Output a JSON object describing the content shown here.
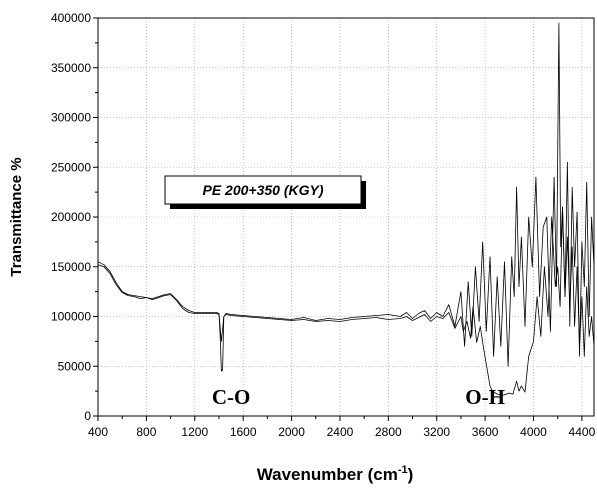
{
  "chart_data": {
    "type": "line",
    "xlabel": "Wavenumber (cm",
    "xlabel_sup": "-1",
    "xlabel_close": ")",
    "ylabel": "Transmittance %",
    "xlim": [
      400,
      4500
    ],
    "ylim": [
      0,
      400000
    ],
    "x_ticks": [
      400,
      800,
      1200,
      1600,
      2000,
      2400,
      2800,
      3200,
      3600,
      4000,
      4400
    ],
    "y_ticks": [
      0,
      50000,
      100000,
      150000,
      200000,
      250000,
      300000,
      350000,
      400000
    ],
    "x_tick_labels": [
      "400",
      "800",
      "1200",
      "1600",
      "2000",
      "2400",
      "2800",
      "3200",
      "3600",
      "4000",
      "4400"
    ],
    "y_tick_labels": [
      "0",
      "50000",
      "100000",
      "150000",
      "200000",
      "250000",
      "300000",
      "350000",
      "400000"
    ],
    "grid": true,
    "legend_label": "PE 200+350 (KGY)",
    "annotations": [
      {
        "text": "C-O",
        "x": 1500,
        "y": 12000
      },
      {
        "text": "O-H",
        "x": 3600,
        "y": 12000
      }
    ],
    "series": [
      {
        "x": [
          400,
          450,
          500,
          550,
          600,
          650,
          700,
          750,
          800,
          850,
          900,
          950,
          1000,
          1050,
          1100,
          1150,
          1200,
          1300,
          1380,
          1400,
          1420,
          1440,
          1460,
          1500,
          1600,
          1700,
          1800,
          1900,
          2000,
          2100,
          2200,
          2300,
          2400,
          2500,
          2600,
          2700,
          2800,
          2900,
          2950,
          3000,
          3050,
          3100,
          3150,
          3200,
          3250,
          3300,
          3350,
          3400,
          3420,
          3450,
          3480,
          3500,
          3530,
          3560,
          3590,
          3620,
          3640,
          3660,
          3700,
          3750,
          3800,
          3830,
          3860,
          3880,
          3900,
          3930,
          3960,
          4000,
          4030,
          4060,
          4090,
          4120,
          4150,
          4180,
          4200,
          4220,
          4240,
          4260,
          4280,
          4300,
          4320,
          4340,
          4360,
          4380,
          4400,
          4420,
          4440,
          4460,
          4480,
          4500
        ],
        "y": [
          152000,
          150000,
          143000,
          132000,
          124000,
          121000,
          120000,
          118000,
          119000,
          117000,
          119000,
          121000,
          122000,
          116000,
          108000,
          104000,
          103000,
          103000,
          103000,
          102000,
          75000,
          100000,
          102000,
          101000,
          100000,
          99000,
          98000,
          97000,
          96000,
          97000,
          95000,
          96000,
          95000,
          97000,
          98000,
          99000,
          97000,
          98000,
          100000,
          96000,
          99000,
          102000,
          95000,
          100000,
          98000,
          104000,
          88000,
          100000,
          85000,
          95000,
          78000,
          110000,
          74000,
          90000,
          66000,
          45000,
          30000,
          25000,
          22000,
          21000,
          23000,
          22000,
          35000,
          25000,
          30000,
          24000,
          60000,
          75000,
          120000,
          80000,
          150000,
          100000,
          200000,
          130000,
          150000,
          110000,
          210000,
          120000,
          180000,
          110000,
          170000,
          90000,
          150000,
          70000,
          120000,
          60000,
          130000,
          80000,
          100000,
          70000
        ]
      },
      {
        "x": [
          400,
          450,
          500,
          550,
          600,
          650,
          700,
          750,
          800,
          850,
          900,
          950,
          1000,
          1050,
          1100,
          1150,
          1200,
          1300,
          1380,
          1400,
          1410,
          1420,
          1430,
          1440,
          1460,
          1500,
          1600,
          1700,
          1800,
          1900,
          2000,
          2100,
          2200,
          2300,
          2400,
          2500,
          2600,
          2700,
          2800,
          2900,
          2950,
          3000,
          3050,
          3100,
          3150,
          3200,
          3250,
          3300,
          3350,
          3400,
          3430,
          3460,
          3490,
          3520,
          3550,
          3580,
          3610,
          3640,
          3670,
          3700,
          3730,
          3760,
          3790,
          3820,
          3840,
          3860,
          3880,
          3900,
          3930,
          3960,
          3990,
          4020,
          4050,
          4080,
          4110,
          4140,
          4170,
          4190,
          4210,
          4225,
          4240,
          4260,
          4280,
          4300,
          4320,
          4340,
          4360,
          4380,
          4400,
          4420,
          4440,
          4460,
          4480,
          4500
        ],
        "y": [
          155000,
          152000,
          145000,
          134000,
          125000,
          122000,
          121000,
          120000,
          119000,
          118000,
          120000,
          122000,
          123000,
          117000,
          110000,
          106000,
          104000,
          104000,
          104000,
          103000,
          80000,
          45000,
          46000,
          100000,
          103000,
          102000,
          101000,
          100000,
          99000,
          98000,
          97000,
          99000,
          96000,
          98000,
          97000,
          99000,
          100000,
          101000,
          102000,
          100000,
          104000,
          98000,
          103000,
          106000,
          98000,
          104000,
          100000,
          112000,
          90000,
          125000,
          70000,
          135000,
          80000,
          150000,
          95000,
          175000,
          85000,
          160000,
          60000,
          140000,
          70000,
          155000,
          50000,
          160000,
          120000,
          230000,
          130000,
          180000,
          90000,
          200000,
          150000,
          240000,
          120000,
          190000,
          200000,
          85000,
          240000,
          130000,
          395000,
          170000,
          210000,
          120000,
          255000,
          90000,
          230000,
          150000,
          205000,
          60000,
          175000,
          130000,
          235000,
          100000,
          200000,
          150000
        ]
      }
    ]
  }
}
